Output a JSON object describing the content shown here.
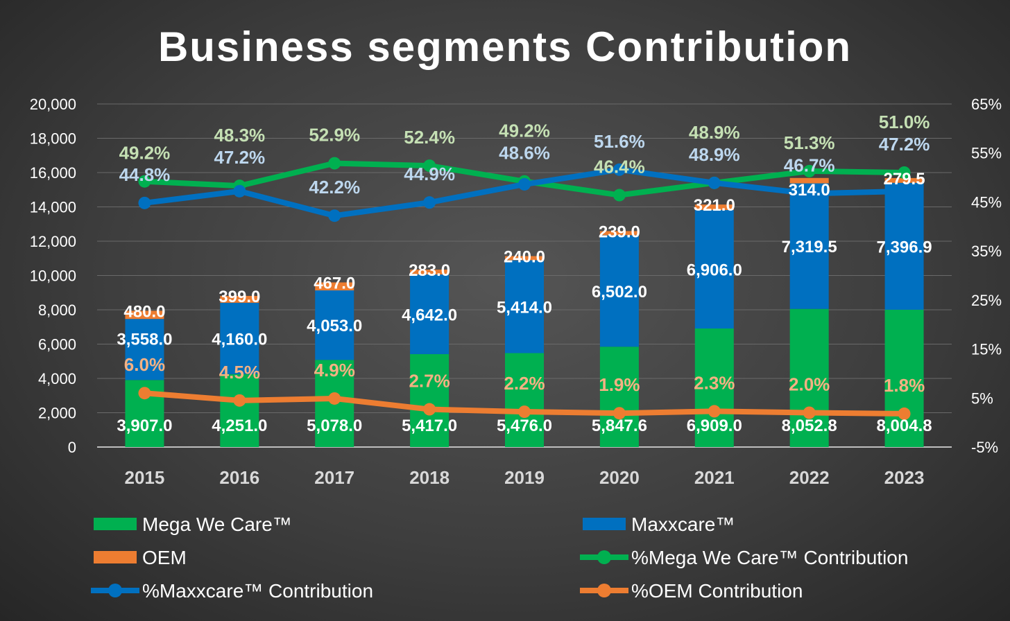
{
  "chart_data": {
    "type": "bar",
    "subtype": "stacked bar with line overlay on secondary axis",
    "title": "Business segments Contribution",
    "categories": [
      "2015",
      "2016",
      "2017",
      "2018",
      "2019",
      "2020",
      "2021",
      "2022",
      "2023"
    ],
    "bar_series": [
      {
        "name": "Mega We Care™",
        "color": "#00b050",
        "values": [
          3907.0,
          4251.0,
          5078.0,
          5417.0,
          5476.0,
          5847.6,
          6909.0,
          8052.8,
          8004.8
        ],
        "labels": [
          "3,907.0",
          "4,251.0",
          "5,078.0",
          "5,417.0",
          "5,476.0",
          "5,847.6",
          "6,909.0",
          "8,052.8",
          "8,004.8"
        ]
      },
      {
        "name": "Maxxcare™",
        "color": "#0070c0",
        "values": [
          3558.0,
          4160.0,
          4053.0,
          4642.0,
          5414.0,
          6502.0,
          6906.0,
          7319.5,
          7396.9
        ],
        "labels": [
          "3,558.0",
          "4,160.0",
          "4,053.0",
          "4,642.0",
          "5,414.0",
          "6,502.0",
          "6,906.0",
          "7,319.5",
          "7,396.9"
        ]
      },
      {
        "name": "OEM",
        "color": "#ed7d31",
        "values": [
          480.0,
          399.0,
          467.0,
          283.0,
          240.0,
          239.0,
          321.0,
          314.0,
          279.5
        ],
        "labels": [
          "480.0",
          "399.0",
          "467.0",
          "283.0",
          "240.0",
          "239.0",
          "321.0",
          "314.0",
          "279.5"
        ]
      }
    ],
    "line_series": [
      {
        "name": "%Mega We Care™ Contribution",
        "color": "#00b050",
        "label_color": "#c5e0b4",
        "values": [
          49.2,
          48.3,
          52.9,
          52.4,
          49.2,
          46.4,
          48.9,
          51.3,
          51.0
        ],
        "labels": [
          "49.2%",
          "48.3%",
          "52.9%",
          "52.4%",
          "49.2%",
          "46.4%",
          "48.9%",
          "51.3%",
          "51.0%"
        ]
      },
      {
        "name": "%Maxxcare™ Contribution",
        "color": "#0070c0",
        "label_color": "#bdd7ee",
        "values": [
          44.8,
          47.2,
          42.2,
          44.9,
          48.6,
          51.6,
          48.9,
          46.7,
          47.2
        ],
        "labels": [
          "44.8%",
          "47.2%",
          "42.2%",
          "44.9%",
          "48.6%",
          "51.6%",
          "48.9%",
          "46.7%",
          "47.2%"
        ]
      },
      {
        "name": "%OEM Contribution",
        "color": "#ed7d31",
        "label_color": "#f4b183",
        "values": [
          6.0,
          4.5,
          4.9,
          2.7,
          2.2,
          1.9,
          2.3,
          2.0,
          1.8
        ],
        "labels": [
          "6.0%",
          "4.5%",
          "4.9%",
          "2.7%",
          "2.2%",
          "1.9%",
          "2.3%",
          "2.0%",
          "1.8%"
        ]
      }
    ],
    "y_left": {
      "min": 0,
      "max": 20000,
      "ticks": [
        "0",
        "2,000",
        "4,000",
        "6,000",
        "8,000",
        "10,000",
        "12,000",
        "14,000",
        "16,000",
        "18,000",
        "20,000"
      ]
    },
    "y_right": {
      "min": -5,
      "max": 65,
      "ticks": [
        "-5%",
        "5%",
        "15%",
        "25%",
        "35%",
        "45%",
        "55%",
        "65%"
      ]
    },
    "grid": true,
    "legend_placement": "bottom"
  }
}
